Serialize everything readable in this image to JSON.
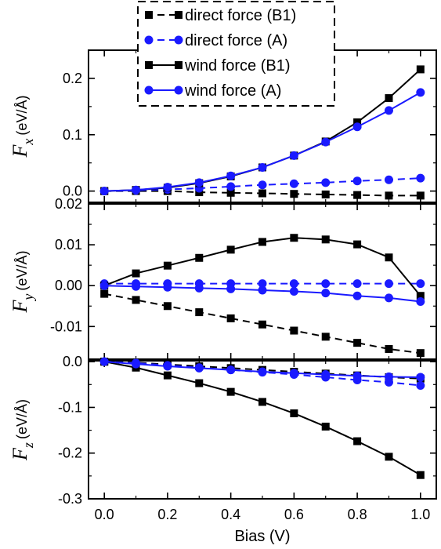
{
  "chart_data": {
    "type": "line",
    "x": [
      0.0,
      0.1,
      0.2,
      0.3,
      0.4,
      0.5,
      0.6,
      0.7,
      0.8,
      0.9,
      1.0
    ],
    "xlabel": "Bias (V)",
    "xlim": [
      -0.05,
      1.05
    ],
    "xticks": [
      "0.0",
      "0.2",
      "0.4",
      "0.6",
      "0.8",
      "1.0"
    ],
    "legend": {
      "placement": "top-center",
      "entries": [
        {
          "label": "direct force (B1)",
          "color": "#000000",
          "dash": true,
          "marker": "square"
        },
        {
          "label": "direct force (A)",
          "color": "#1a1aff",
          "dash": true,
          "marker": "circle"
        },
        {
          "label": "wind force (B1)",
          "color": "#000000",
          "dash": false,
          "marker": "square"
        },
        {
          "label": "wind force (A)",
          "color": "#1a1aff",
          "dash": false,
          "marker": "circle"
        }
      ]
    },
    "panels": [
      {
        "ylabel_var": "F",
        "ylabel_sub": "x",
        "ylabel_unit": "(eV/Å)",
        "ylim": [
          -0.02,
          0.25
        ],
        "yticks": [
          0.0,
          0.1,
          0.2
        ],
        "ytick_labels": [
          "0.0",
          "0.1",
          "0.2"
        ],
        "series": [
          {
            "name": "direct force (B1)",
            "values": [
              0.0,
              0.0,
              0.0,
              -0.002,
              -0.003,
              -0.004,
              -0.005,
              -0.006,
              -0.007,
              -0.008,
              -0.008
            ]
          },
          {
            "name": "direct force (A)",
            "values": [
              0.0,
              0.001,
              0.003,
              0.005,
              0.008,
              0.011,
              0.013,
              0.015,
              0.018,
              0.02,
              0.023
            ]
          },
          {
            "name": "wind force (B1)",
            "values": [
              0.0,
              0.002,
              0.006,
              0.014,
              0.026,
              0.042,
              0.063,
              0.088,
              0.122,
              0.165,
              0.216
            ]
          },
          {
            "name": "wind force (A)",
            "values": [
              0.0,
              0.002,
              0.007,
              0.015,
              0.027,
              0.042,
              0.063,
              0.087,
              0.114,
              0.143,
              0.175
            ]
          }
        ]
      },
      {
        "ylabel_var": "F",
        "ylabel_sub": "y",
        "ylabel_unit": "(eV/Å)",
        "ylim": [
          -0.018,
          0.02
        ],
        "yticks": [
          -0.01,
          0.0,
          0.01,
          0.02
        ],
        "ytick_labels": [
          "-0.01",
          "0.00",
          "0.01",
          "0.02"
        ],
        "series": [
          {
            "name": "direct force (B1)",
            "values": [
              -0.002,
              -0.0035,
              -0.005,
              -0.0065,
              -0.008,
              -0.0095,
              -0.011,
              -0.0125,
              -0.014,
              -0.0155,
              -0.0165
            ]
          },
          {
            "name": "direct force (A)",
            "values": [
              0.0005,
              0.0005,
              0.0005,
              0.0005,
              0.0005,
              0.0005,
              0.0005,
              0.0005,
              0.0005,
              0.0005,
              0.0005
            ]
          },
          {
            "name": "wind force (B1)",
            "values": [
              0.0,
              0.003,
              0.0049,
              0.0068,
              0.0088,
              0.0107,
              0.0117,
              0.0113,
              0.0101,
              0.0069,
              -0.0025
            ]
          },
          {
            "name": "wind force (A)",
            "values": [
              0.0,
              -0.0002,
              -0.0004,
              -0.0006,
              -0.0008,
              -0.0011,
              -0.0014,
              -0.0018,
              -0.0025,
              -0.003,
              -0.0039
            ]
          }
        ]
      },
      {
        "ylabel_var": "F",
        "ylabel_sub": "z",
        "ylabel_unit": "(eV/Å)",
        "ylim": [
          -0.3,
          0.002
        ],
        "yticks": [
          -0.3,
          -0.2,
          -0.1,
          0.0
        ],
        "ytick_labels": [
          "-0.3",
          "-0.2",
          "-0.1",
          "0.0"
        ],
        "series": [
          {
            "name": "direct force (B1)",
            "values": [
              0.0,
              -0.002,
              -0.006,
              -0.01,
              -0.014,
              -0.018,
              -0.022,
              -0.026,
              -0.03,
              -0.034,
              -0.037
            ]
          },
          {
            "name": "direct force (A)",
            "values": [
              0.0,
              -0.003,
              -0.008,
              -0.013,
              -0.018,
              -0.023,
              -0.028,
              -0.034,
              -0.04,
              -0.045,
              -0.052
            ]
          },
          {
            "name": "wind force (B1)",
            "values": [
              0.0,
              -0.013,
              -0.03,
              -0.047,
              -0.066,
              -0.088,
              -0.113,
              -0.142,
              -0.174,
              -0.208,
              -0.248
            ]
          },
          {
            "name": "wind force (A)",
            "values": [
              0.0,
              -0.005,
              -0.01,
              -0.014,
              -0.018,
              -0.022,
              -0.025,
              -0.028,
              -0.031,
              -0.033,
              -0.034
            ]
          }
        ]
      }
    ]
  }
}
